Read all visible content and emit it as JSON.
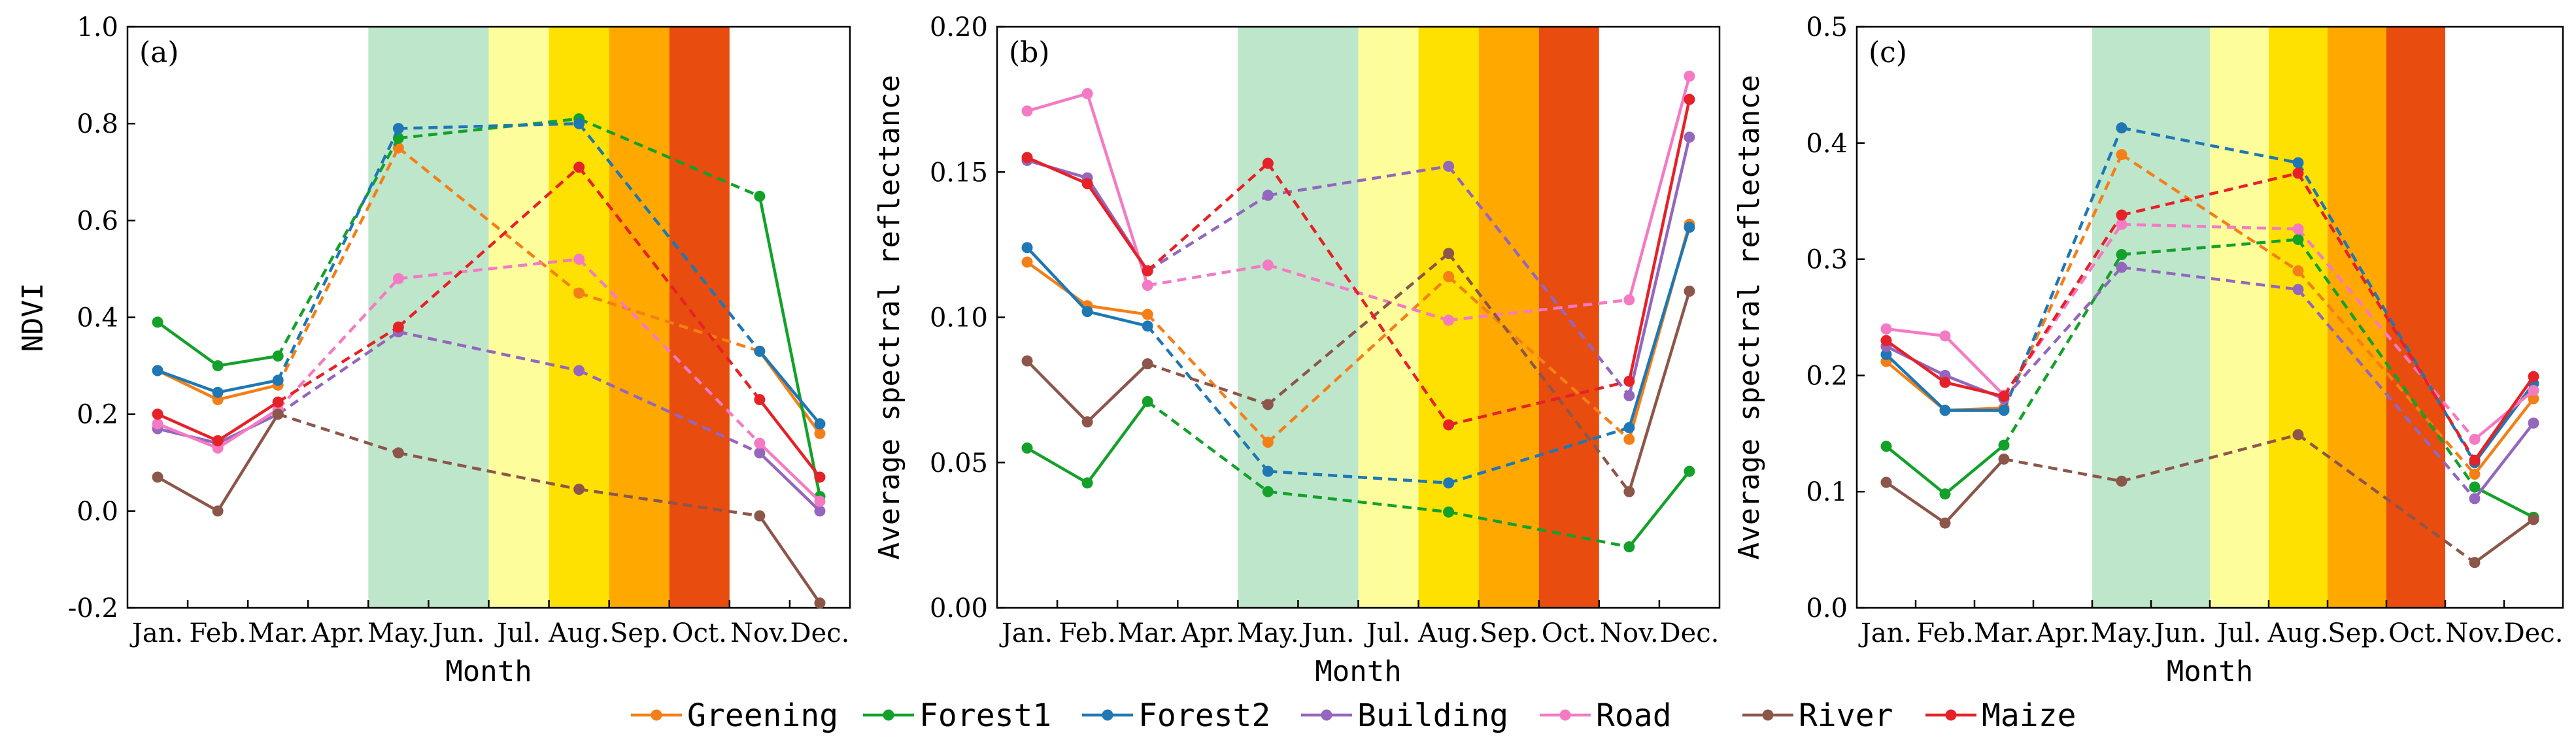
{
  "chart_data": {
    "type": "line",
    "xlabel": "Month",
    "months": [
      "Jan.",
      "Feb.",
      "Mar.",
      "Apr.",
      "May.",
      "Jun.",
      "Jul.",
      "Aug.",
      "Sep.",
      "Oct.",
      "Nov.",
      "Dec."
    ],
    "observed_month_index": [
      0,
      1,
      2,
      4,
      7,
      10,
      11
    ],
    "season_bands": [
      {
        "from": 3,
        "to": 5,
        "color": "#bde6cb"
      },
      {
        "from": 5,
        "to": 6,
        "color": "#fefd9c"
      },
      {
        "from": 6,
        "to": 7,
        "color": "#fee100"
      },
      {
        "from": 7,
        "to": 8,
        "color": "#fea800"
      },
      {
        "from": 8,
        "to": 9,
        "color": "#e84c0e"
      }
    ],
    "series_styles": [
      {
        "name": "Greening",
        "color": "#f47f17"
      },
      {
        "name": "Forest1",
        "color": "#13a12a"
      },
      {
        "name": "Forest2",
        "color": "#1f77b4"
      },
      {
        "name": "Building",
        "color": "#9466bd"
      },
      {
        "name": "Road",
        "color": "#f47ac3"
      },
      {
        "name": "River",
        "color": "#8d564a"
      },
      {
        "name": "Maize",
        "color": "#e62127"
      }
    ],
    "legend": [
      "Greening",
      "Forest1",
      "Forest2",
      "Building",
      "Road",
      "River",
      "Maize"
    ],
    "panels": [
      {
        "label": "(a)",
        "ylabel": "NDVI",
        "ylim": [
          -0.2,
          1.0
        ],
        "yticks": [
          -0.2,
          0.0,
          0.2,
          0.4,
          0.6,
          0.8,
          1.0
        ],
        "ytick_labels": [
          "-0.2",
          "0.0",
          "0.2",
          "0.4",
          "0.6",
          "0.8",
          "1.0"
        ],
        "series": [
          {
            "name": "Greening",
            "values": [
              0.29,
              0.23,
              0.26,
              0.75,
              0.45,
              0.33,
              0.16
            ]
          },
          {
            "name": "Forest1",
            "values": [
              0.39,
              0.3,
              0.32,
              0.77,
              0.81,
              0.65,
              0.03
            ]
          },
          {
            "name": "Forest2",
            "values": [
              0.29,
              0.245,
              0.27,
              0.79,
              0.8,
              0.33,
              0.18
            ]
          },
          {
            "name": "Building",
            "values": [
              0.17,
              0.14,
              0.2,
              0.37,
              0.29,
              0.12,
              0.0
            ]
          },
          {
            "name": "Road",
            "values": [
              0.18,
              0.13,
              0.21,
              0.48,
              0.52,
              0.14,
              0.02
            ]
          },
          {
            "name": "River",
            "values": [
              0.07,
              0.0,
              0.2,
              0.12,
              0.045,
              -0.01,
              -0.19
            ]
          },
          {
            "name": "Maize",
            "values": [
              0.2,
              0.145,
              0.225,
              0.38,
              0.71,
              0.23,
              0.07
            ]
          }
        ]
      },
      {
        "label": "(b)",
        "ylabel": "Average spectral reflectance",
        "ylim": [
          0.0,
          0.2
        ],
        "yticks": [
          0.0,
          0.05,
          0.1,
          0.15,
          0.2
        ],
        "ytick_labels": [
          "0.00",
          "0.05",
          "0.10",
          "0.15",
          "0.20"
        ],
        "series": [
          {
            "name": "Greening",
            "values": [
              0.119,
              0.104,
              0.101,
              0.057,
              0.114,
              0.058,
              0.132
            ]
          },
          {
            "name": "Forest1",
            "values": [
              0.055,
              0.043,
              0.071,
              0.04,
              0.033,
              0.021,
              0.047
            ]
          },
          {
            "name": "Forest2",
            "values": [
              0.124,
              0.102,
              0.097,
              0.047,
              0.043,
              0.062,
              0.131
            ]
          },
          {
            "name": "Building",
            "values": [
              0.154,
              0.148,
              0.116,
              0.142,
              0.152,
              0.073,
              0.162
            ]
          },
          {
            "name": "Road",
            "values": [
              0.171,
              0.177,
              0.111,
              0.118,
              0.099,
              0.106,
              0.183
            ]
          },
          {
            "name": "River",
            "values": [
              0.085,
              0.064,
              0.084,
              0.07,
              0.122,
              0.04,
              0.109
            ]
          },
          {
            "name": "Maize",
            "values": [
              0.155,
              0.146,
              0.116,
              0.153,
              0.063,
              0.078,
              0.175
            ]
          }
        ]
      },
      {
        "label": "(c)",
        "ylabel": "Average spectral reflectance",
        "ylim": [
          0.0,
          0.5
        ],
        "yticks": [
          0.0,
          0.1,
          0.2,
          0.3,
          0.4,
          0.5
        ],
        "ytick_labels": [
          "0.0",
          "0.1",
          "0.2",
          "0.3",
          "0.4",
          "0.5"
        ],
        "series": [
          {
            "name": "Greening",
            "values": [
              0.212,
              0.17,
              0.172,
              0.39,
              0.29,
              0.115,
              0.18
            ]
          },
          {
            "name": "Forest1",
            "values": [
              0.139,
              0.098,
              0.14,
              0.304,
              0.317,
              0.104,
              0.078
            ]
          },
          {
            "name": "Forest2",
            "values": [
              0.218,
              0.17,
              0.17,
              0.413,
              0.383,
              0.125,
              0.193
            ]
          },
          {
            "name": "Building",
            "values": [
              0.225,
              0.2,
              0.18,
              0.293,
              0.274,
              0.094,
              0.159
            ]
          },
          {
            "name": "Road",
            "values": [
              0.24,
              0.234,
              0.183,
              0.33,
              0.326,
              0.145,
              0.187
            ]
          },
          {
            "name": "River",
            "values": [
              0.108,
              0.073,
              0.128,
              0.109,
              0.149,
              0.039,
              0.076
            ]
          },
          {
            "name": "Maize",
            "values": [
              0.23,
              0.194,
              0.182,
              0.338,
              0.374,
              0.127,
              0.199
            ]
          }
        ]
      }
    ]
  }
}
